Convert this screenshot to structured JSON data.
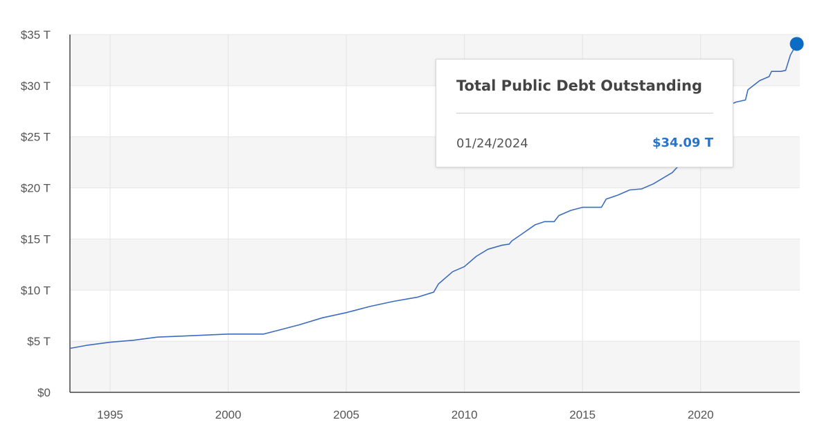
{
  "chart_data": {
    "type": "line",
    "title": "",
    "xlabel": "",
    "ylabel": "",
    "xlim": [
      1993.3,
      2024.2
    ],
    "ylim": [
      0,
      35
    ],
    "x_ticks": [
      1995,
      2000,
      2005,
      2010,
      2015,
      2020
    ],
    "x_tick_labels": [
      "1995",
      "2000",
      "2005",
      "2010",
      "2015",
      "2020"
    ],
    "y_ticks": [
      0,
      5,
      10,
      15,
      20,
      25,
      30,
      35
    ],
    "y_tick_labels": [
      "$0",
      "$5 T",
      "$10 T",
      "$15 T",
      "$20 T",
      "$25 T",
      "$30 T",
      "$35 T"
    ],
    "grid": true,
    "line_color": "#3b6bbf",
    "marker_color": "#0a6cc4",
    "series": [
      {
        "x": [
          1993.3,
          1994.0,
          1995.0,
          1996.0,
          1997.0,
          1998.0,
          1999.0,
          2000.0,
          2000.5,
          2001.0,
          2001.5,
          2002.0,
          2003.0,
          2004.0,
          2005.0,
          2006.0,
          2007.0,
          2008.0,
          2008.7,
          2008.9,
          2009.0,
          2009.5,
          2010.0,
          2010.5,
          2011.0,
          2011.6,
          2011.9,
          2012.0,
          2012.5,
          2013.0,
          2013.4,
          2013.8,
          2014.0,
          2014.5,
          2015.0,
          2015.8,
          2016.0,
          2016.5,
          2017.0,
          2017.5,
          2018.0,
          2018.8,
          2019.0,
          2019.5,
          2020.0,
          2020.3,
          2020.5,
          2021.0,
          2021.5,
          2021.9,
          2022.0,
          2022.5,
          2022.9,
          2023.0,
          2023.4,
          2023.6,
          2023.8,
          2024.07
        ],
        "y": [
          4.3,
          4.6,
          4.9,
          5.1,
          5.4,
          5.5,
          5.6,
          5.7,
          5.7,
          5.7,
          5.7,
          6.0,
          6.6,
          7.3,
          7.8,
          8.4,
          8.9,
          9.3,
          9.8,
          10.6,
          10.8,
          11.8,
          12.3,
          13.3,
          14.0,
          14.4,
          14.5,
          14.8,
          15.6,
          16.4,
          16.7,
          16.7,
          17.3,
          17.8,
          18.1,
          18.1,
          18.9,
          19.3,
          19.8,
          19.9,
          20.4,
          21.5,
          22.0,
          22.6,
          23.2,
          24.0,
          26.0,
          27.9,
          28.4,
          28.6,
          29.6,
          30.5,
          30.9,
          31.4,
          31.4,
          31.5,
          33.0,
          34.09
        ]
      }
    ],
    "tooltip": {
      "title": "Total Public Debt Outstanding",
      "date": "01/24/2024",
      "value": "$34.09 T"
    }
  }
}
